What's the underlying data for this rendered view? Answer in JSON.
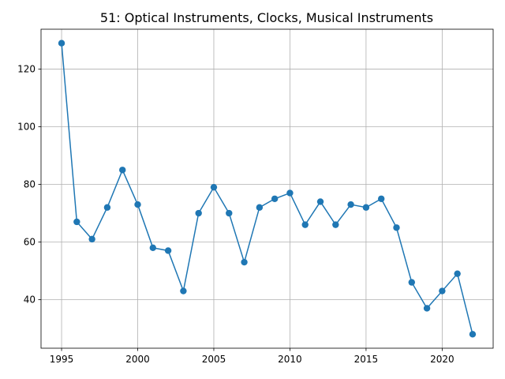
{
  "chart_data": {
    "type": "line",
    "title": "51: Optical Instruments, Clocks, Musical Instruments",
    "xlabel": "",
    "ylabel": "",
    "grid": true,
    "xlim": [
      1993.65,
      2023.35
    ],
    "ylim": [
      23.15,
      133.85
    ],
    "xticks": [
      1995,
      2000,
      2005,
      2010,
      2015,
      2020
    ],
    "yticks": [
      40,
      60,
      80,
      100,
      120
    ],
    "series": [
      {
        "color": "#1f77b4",
        "marker": "circle",
        "x": [
          1995,
          1996,
          1997,
          1998,
          1999,
          2000,
          2001,
          2002,
          2003,
          2004,
          2005,
          2006,
          2007,
          2008,
          2009,
          2010,
          2011,
          2012,
          2013,
          2014,
          2015,
          2016,
          2017,
          2018,
          2019,
          2020,
          2021,
          2022
        ],
        "y": [
          129,
          67,
          61,
          72,
          85,
          73,
          58,
          57,
          43,
          70,
          79,
          70,
          53,
          72,
          75,
          77,
          66,
          74,
          66,
          73,
          72,
          75,
          65,
          46,
          37,
          43,
          49,
          28
        ]
      }
    ]
  }
}
